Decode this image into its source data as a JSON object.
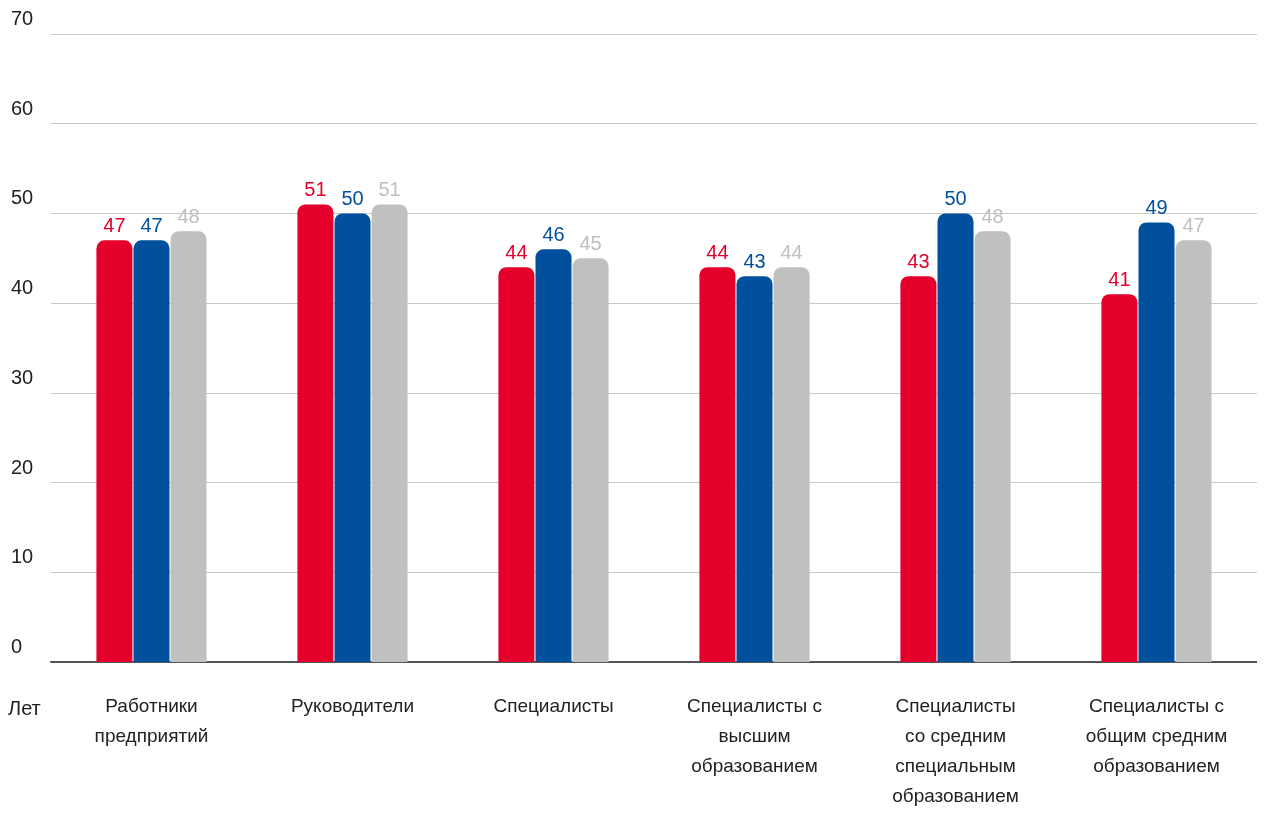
{
  "chart_data": {
    "type": "bar",
    "ylabel": "Лет",
    "categories": [
      "Работники предприятий",
      "Руководители",
      "Специалисты",
      "Специалисты с высшим образованием",
      "Специалисты со средним специальным образованием",
      "Специалисты с общим средним образованием"
    ],
    "series": [
      {
        "color": "#e4002b",
        "values": [
          47,
          51,
          44,
          44,
          43,
          41
        ]
      },
      {
        "color": "#00509e",
        "values": [
          47,
          50,
          46,
          43,
          50,
          49
        ]
      },
      {
        "color": "#bfc0c0",
        "values": [
          48,
          51,
          45,
          44,
          48,
          47
        ]
      }
    ],
    "ylim": [
      0,
      70
    ],
    "yticks": [
      0,
      10,
      20,
      30,
      40,
      50,
      60,
      70
    ],
    "grid": "y",
    "data_labels": true
  }
}
